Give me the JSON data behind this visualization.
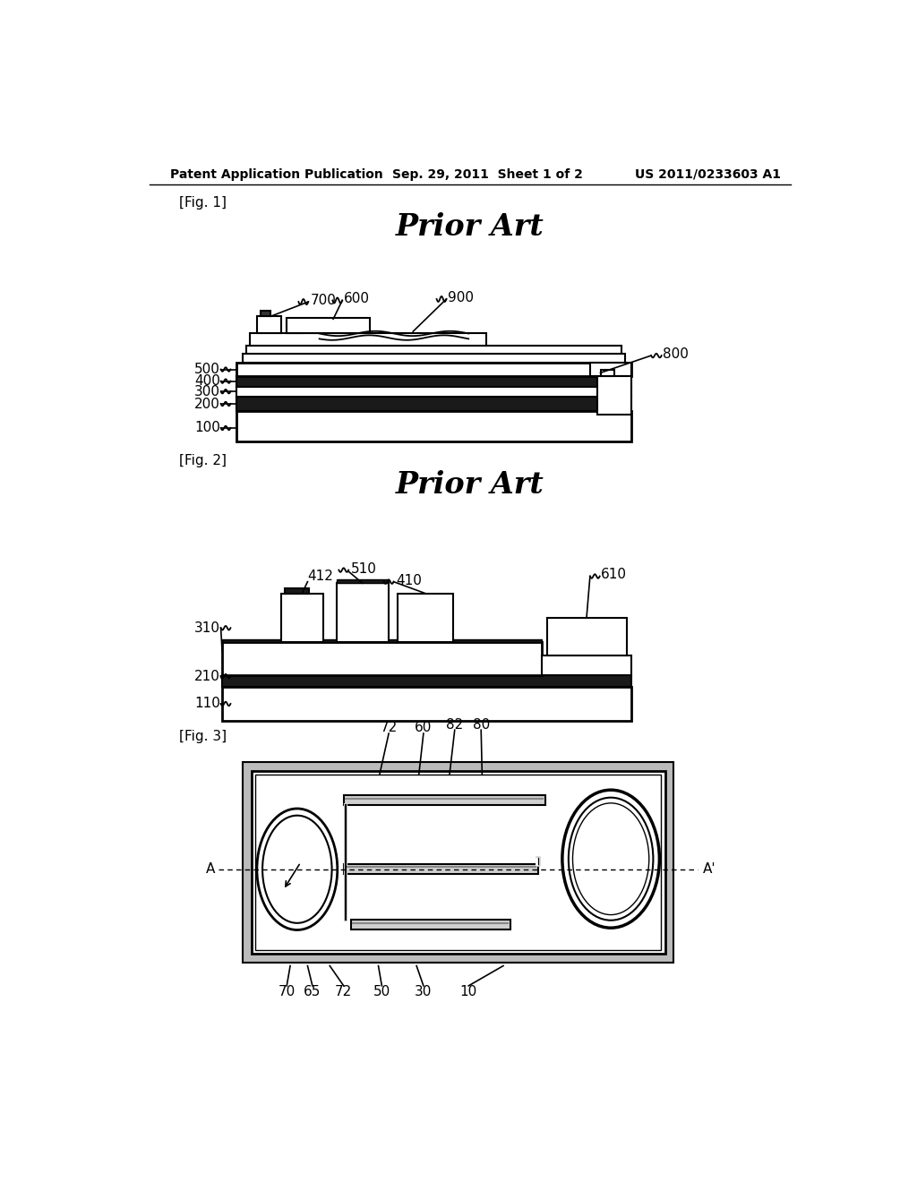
{
  "page_title_left": "Patent Application Publication",
  "page_title_mid": "Sep. 29, 2011  Sheet 1 of 2",
  "page_title_right": "US 2011/0233603 A1",
  "background": "#ffffff",
  "fig1_label": "[Fig. 1]",
  "fig1_title": "Prior Art",
  "fig2_label": "[Fig. 2]",
  "fig2_title": "Prior Art",
  "fig3_label": "[Fig. 3]"
}
